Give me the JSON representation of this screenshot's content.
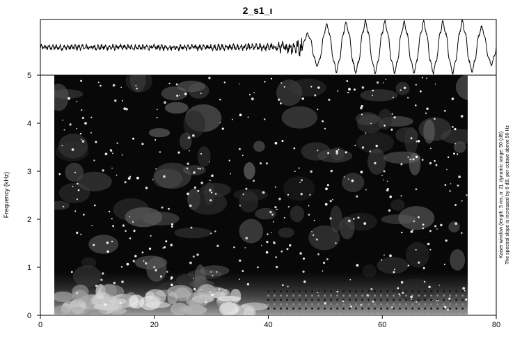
{
  "chart_data": [
    {
      "type": "line",
      "panel": "waveform",
      "title": "2_s1_ı",
      "description_of_signal": "low-amplitude noisy oscillation for roughly the first half, then about ten large quasi-periodic cycles",
      "x": [
        0,
        10,
        20,
        30,
        40,
        45,
        50,
        55,
        60,
        65,
        70,
        75,
        80
      ],
      "envelope": [
        0.12,
        0.12,
        0.12,
        0.13,
        0.15,
        0.3,
        0.8,
        0.9,
        0.9,
        0.88,
        0.9,
        0.9,
        0.55
      ],
      "xlim": [
        0,
        80
      ],
      "large_cycle_count": 10
    },
    {
      "type": "heatmap",
      "panel": "spectrogram",
      "x_ticks": [
        0,
        20,
        40,
        60,
        80
      ],
      "y_ticks": [
        0,
        1,
        2,
        3,
        4,
        5
      ],
      "xlim": [
        0,
        80
      ],
      "ylim": [
        0,
        5
      ],
      "ylabel": "Frequency (kHz)",
      "colormap": "grayscale (black = low, white = high energy)",
      "energy_region_x": [
        3,
        76
      ],
      "low_frequency_band_kHz": [
        0,
        0.6
      ],
      "side_note": [
        "Kaiser window (length: 5 ms, α: 2), dynamic range: 50 (dB)",
        "The spectral slope is increased by 6 dB. per octave above 50 Hz"
      ]
    }
  ]
}
